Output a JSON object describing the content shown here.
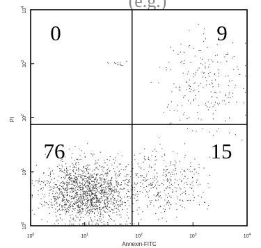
{
  "chart_data": {
    "type": "scatter",
    "title": "",
    "cut_title_fragment": "(e.g.)",
    "xlabel": "Annexin-FITC",
    "ylabel": "PI",
    "xscale": "log",
    "yscale": "log",
    "xlim": [
      1,
      10000
    ],
    "ylim": [
      1,
      10000
    ],
    "x_ticks": [
      {
        "value": 1,
        "base": "10",
        "exp": "0"
      },
      {
        "value": 10,
        "base": "10",
        "exp": "1"
      },
      {
        "value": 100,
        "base": "10",
        "exp": "2"
      },
      {
        "value": 1000,
        "base": "10",
        "exp": "3"
      },
      {
        "value": 10000,
        "base": "10",
        "exp": "4"
      }
    ],
    "y_ticks": [
      {
        "value": 1,
        "base": "10",
        "exp": "0"
      },
      {
        "value": 10,
        "base": "10",
        "exp": "1"
      },
      {
        "value": 100,
        "base": "10",
        "exp": "2"
      },
      {
        "value": 1000,
        "base": "10",
        "exp": "3"
      },
      {
        "value": 10000,
        "base": "10",
        "exp": "4"
      }
    ],
    "gates": {
      "x": 75,
      "y": 75
    },
    "quadrants": [
      {
        "position": "upper-left",
        "percent": "0"
      },
      {
        "position": "upper-right",
        "percent": "9"
      },
      {
        "position": "lower-left",
        "percent": "76"
      },
      {
        "position": "lower-right",
        "percent": "15"
      }
    ],
    "point_color": "#333333",
    "grid": false,
    "legend": "none"
  }
}
